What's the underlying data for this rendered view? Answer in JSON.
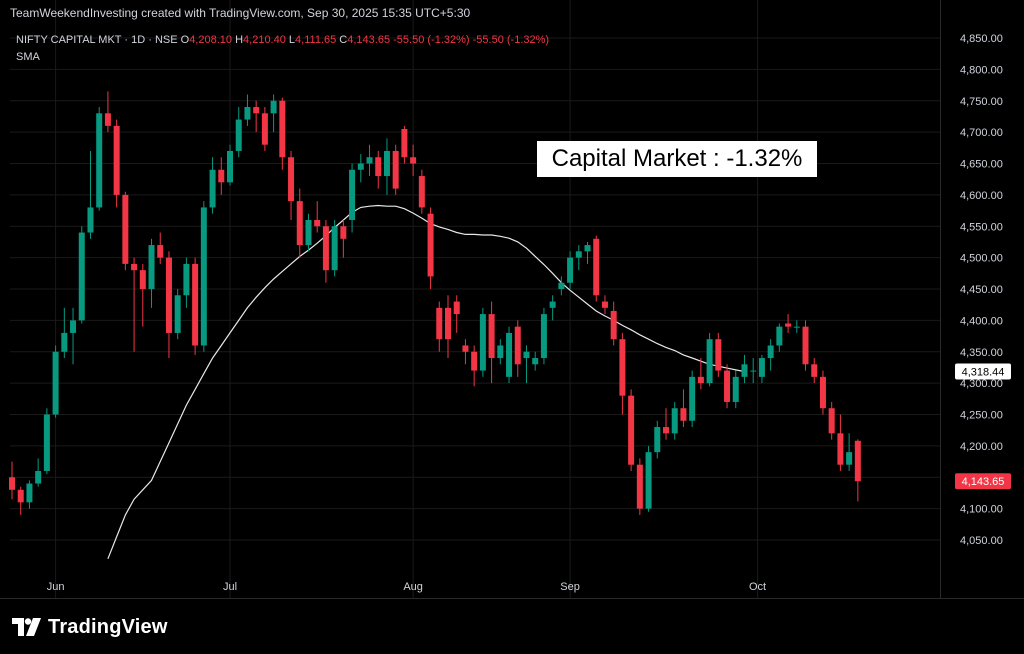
{
  "header": {
    "credit": "TeamWeekendInvesting created with TradingView.com, Sep 30, 2025 15:35 UTC+5:30"
  },
  "legend": {
    "symbol": "NIFTY CAPITAL MKT · 1D · NSE",
    "o_label": "O",
    "o_value": "4,208.10",
    "h_label": "H",
    "h_value": "4,210.40",
    "l_label": "L",
    "l_value": "4,111.65",
    "c_label": "C",
    "c_value": "4,143.65",
    "change1": "-55.50 (-1.32%)",
    "change2": "-55.50 (-1.32%)",
    "indicator": "SMA"
  },
  "annotation": "Capital Market : -1.32%",
  "brand": {
    "name": "TradingView",
    "logo_icon": "tradingview-logo-icon"
  },
  "colors": {
    "up": "#089981",
    "down": "#f23645",
    "sma": "#e8e8e8",
    "grid": "#1a1a1a",
    "text": "#d1d4dc"
  },
  "chart_data": {
    "type": "candlestick",
    "y_range": [
      4010,
      4870
    ],
    "y_ticks": [
      {
        "value": 4850,
        "label": "4,850.00"
      },
      {
        "value": 4800,
        "label": "4,800.00"
      },
      {
        "value": 4750,
        "label": "4,750.00"
      },
      {
        "value": 4700,
        "label": "4,700.00"
      },
      {
        "value": 4650,
        "label": "4,650.00"
      },
      {
        "value": 4600,
        "label": "4,600.00"
      },
      {
        "value": 4550,
        "label": "4,550.00"
      },
      {
        "value": 4500,
        "label": "4,500.00"
      },
      {
        "value": 4450,
        "label": "4,450.00"
      },
      {
        "value": 4400,
        "label": "4,400.00"
      },
      {
        "value": 4350,
        "label": "4,350.00"
      },
      {
        "value": 4300,
        "label": "4,300.00"
      },
      {
        "value": 4250,
        "label": "4,250.00"
      },
      {
        "value": 4200,
        "label": "4,200.00"
      },
      {
        "value": 4150,
        "label": "4,150.00"
      },
      {
        "value": 4100,
        "label": "4,100.00"
      },
      {
        "value": 4050,
        "label": "4,050.00"
      }
    ],
    "x_labels": [
      {
        "label": "Jun",
        "index": 5
      },
      {
        "label": "Jul",
        "index": 25
      },
      {
        "label": "Aug",
        "index": 46
      },
      {
        "label": "Sep",
        "index": 64
      },
      {
        "label": "Oct",
        "index": 85.5
      }
    ],
    "price_labels": [
      {
        "value": 4318.44,
        "label": "4,318.44",
        "style": "sma"
      },
      {
        "value": 4143.65,
        "label": "4,143.65",
        "style": "last"
      }
    ],
    "sma_name": "SMA",
    "sma": [
      [
        11,
        4020
      ],
      [
        12,
        4055
      ],
      [
        13,
        4090
      ],
      [
        14,
        4115
      ],
      [
        15,
        4130
      ],
      [
        16,
        4145
      ],
      [
        17,
        4175
      ],
      [
        18,
        4205
      ],
      [
        19,
        4235
      ],
      [
        20,
        4265
      ],
      [
        21,
        4290
      ],
      [
        22,
        4315
      ],
      [
        23,
        4340
      ],
      [
        24,
        4360
      ],
      [
        25,
        4380
      ],
      [
        26,
        4400
      ],
      [
        27,
        4420
      ],
      [
        28,
        4437
      ],
      [
        29,
        4452
      ],
      [
        30,
        4466
      ],
      [
        31,
        4478
      ],
      [
        32,
        4490
      ],
      [
        33,
        4502
      ],
      [
        34,
        4512
      ],
      [
        35,
        4523
      ],
      [
        36,
        4535
      ],
      [
        37,
        4548
      ],
      [
        38,
        4560
      ],
      [
        39,
        4572
      ],
      [
        40,
        4580
      ],
      [
        41,
        4582
      ],
      [
        42,
        4583
      ],
      [
        43,
        4582
      ],
      [
        44,
        4582
      ],
      [
        45,
        4578
      ],
      [
        46,
        4571
      ],
      [
        47,
        4563
      ],
      [
        48,
        4554
      ],
      [
        49,
        4549
      ],
      [
        50,
        4545
      ],
      [
        51,
        4540
      ],
      [
        52,
        4537
      ],
      [
        53,
        4537
      ],
      [
        54,
        4536
      ],
      [
        55,
        4536
      ],
      [
        56,
        4534
      ],
      [
        57,
        4531
      ],
      [
        58,
        4525
      ],
      [
        59,
        4515
      ],
      [
        60,
        4502
      ],
      [
        61,
        4489
      ],
      [
        62,
        4475
      ],
      [
        63,
        4460
      ],
      [
        64,
        4448
      ],
      [
        65,
        4437
      ],
      [
        66,
        4426
      ],
      [
        67,
        4415
      ],
      [
        68,
        4407
      ],
      [
        69,
        4400
      ],
      [
        70,
        4392
      ],
      [
        71,
        4385
      ],
      [
        72,
        4377
      ],
      [
        73,
        4370
      ],
      [
        74,
        4363
      ],
      [
        75,
        4357
      ],
      [
        76,
        4352
      ],
      [
        77,
        4345
      ],
      [
        78,
        4340
      ],
      [
        79,
        4335
      ],
      [
        80,
        4330
      ],
      [
        81,
        4327
      ],
      [
        82,
        4324
      ],
      [
        83,
        4321
      ],
      [
        84,
        4318.44
      ]
    ],
    "candles": [
      [
        0,
        4150,
        4175,
        4115,
        4130
      ],
      [
        1,
        4130,
        4135,
        4090,
        4110
      ],
      [
        2,
        4110,
        4145,
        4100,
        4140
      ],
      [
        3,
        4140,
        4180,
        4135,
        4160
      ],
      [
        4,
        4160,
        4260,
        4155,
        4250
      ],
      [
        5,
        4250,
        4360,
        4245,
        4350
      ],
      [
        6,
        4350,
        4420,
        4340,
        4380
      ],
      [
        7,
        4380,
        4420,
        4330,
        4400
      ],
      [
        8,
        4400,
        4550,
        4395,
        4540
      ],
      [
        9,
        4540,
        4670,
        4530,
        4580
      ],
      [
        10,
        4580,
        4740,
        4575,
        4730
      ],
      [
        11,
        4730,
        4765,
        4700,
        4710
      ],
      [
        12,
        4710,
        4720,
        4580,
        4600
      ],
      [
        13,
        4600,
        4605,
        4480,
        4490
      ],
      [
        14,
        4490,
        4500,
        4350,
        4480
      ],
      [
        15,
        4480,
        4490,
        4390,
        4450
      ],
      [
        16,
        4450,
        4530,
        4420,
        4520
      ],
      [
        17,
        4520,
        4540,
        4490,
        4500
      ],
      [
        18,
        4500,
        4510,
        4340,
        4380
      ],
      [
        19,
        4380,
        4450,
        4370,
        4440
      ],
      [
        20,
        4440,
        4500,
        4420,
        4490
      ],
      [
        21,
        4490,
        4500,
        4345,
        4360
      ],
      [
        22,
        4360,
        4590,
        4350,
        4580
      ],
      [
        23,
        4580,
        4660,
        4570,
        4640
      ],
      [
        24,
        4640,
        4660,
        4600,
        4620
      ],
      [
        25,
        4620,
        4680,
        4615,
        4670
      ],
      [
        26,
        4670,
        4740,
        4660,
        4720
      ],
      [
        27,
        4720,
        4760,
        4710,
        4740
      ],
      [
        28,
        4740,
        4750,
        4700,
        4730
      ],
      [
        29,
        4730,
        4740,
        4670,
        4680
      ],
      [
        30,
        4730,
        4760,
        4700,
        4750
      ],
      [
        31,
        4750,
        4755,
        4640,
        4660
      ],
      [
        32,
        4660,
        4670,
        4560,
        4590
      ],
      [
        33,
        4590,
        4610,
        4500,
        4520
      ],
      [
        34,
        4520,
        4570,
        4510,
        4560
      ],
      [
        35,
        4560,
        4590,
        4540,
        4550
      ],
      [
        36,
        4550,
        4560,
        4460,
        4480
      ],
      [
        37,
        4480,
        4560,
        4470,
        4550
      ],
      [
        38,
        4550,
        4560,
        4500,
        4530
      ],
      [
        39,
        4560,
        4650,
        4540,
        4640
      ],
      [
        40,
        4640,
        4665,
        4620,
        4650
      ],
      [
        41,
        4650,
        4680,
        4630,
        4660
      ],
      [
        42,
        4660,
        4670,
        4610,
        4630
      ],
      [
        43,
        4630,
        4690,
        4600,
        4670
      ],
      [
        44,
        4670,
        4680,
        4600,
        4610
      ],
      [
        45,
        4705,
        4710,
        4650,
        4660
      ],
      [
        46,
        4660,
        4680,
        4630,
        4650
      ],
      [
        47,
        4630,
        4640,
        4570,
        4580
      ],
      [
        48,
        4570,
        4580,
        4450,
        4470
      ],
      [
        49,
        4420,
        4430,
        4350,
        4370
      ],
      [
        50,
        4420,
        4440,
        4340,
        4370
      ],
      [
        51,
        4430,
        4440,
        4380,
        4410
      ],
      [
        52,
        4360,
        4370,
        4330,
        4350
      ],
      [
        53,
        4350,
        4360,
        4295,
        4320
      ],
      [
        54,
        4320,
        4420,
        4310,
        4410
      ],
      [
        55,
        4410,
        4430,
        4300,
        4340
      ],
      [
        56,
        4340,
        4370,
        4330,
        4360
      ],
      [
        57,
        4310,
        4390,
        4300,
        4380
      ],
      [
        58,
        4390,
        4400,
        4310,
        4330
      ],
      [
        59,
        4340,
        4360,
        4300,
        4350
      ],
      [
        60,
        4330,
        4350,
        4320,
        4340
      ],
      [
        61,
        4340,
        4420,
        4330,
        4410
      ],
      [
        62,
        4420,
        4440,
        4400,
        4430
      ],
      [
        63,
        4450,
        4470,
        4440,
        4460
      ],
      [
        64,
        4460,
        4510,
        4450,
        4500
      ],
      [
        65,
        4500,
        4520,
        4480,
        4510
      ],
      [
        66,
        4510,
        4525,
        4490,
        4520
      ],
      [
        67,
        4530,
        4535,
        4430,
        4440
      ],
      [
        68,
        4430,
        4440,
        4410,
        4420
      ],
      [
        69,
        4415,
        4430,
        4360,
        4370
      ],
      [
        70,
        4370,
        4380,
        4250,
        4280
      ],
      [
        71,
        4280,
        4290,
        4160,
        4170
      ],
      [
        72,
        4170,
        4180,
        4090,
        4100
      ],
      [
        73,
        4100,
        4200,
        4095,
        4190
      ],
      [
        74,
        4190,
        4240,
        4180,
        4230
      ],
      [
        75,
        4230,
        4260,
        4210,
        4220
      ],
      [
        76,
        4220,
        4270,
        4210,
        4260
      ],
      [
        77,
        4260,
        4290,
        4230,
        4240
      ],
      [
        78,
        4240,
        4320,
        4230,
        4310
      ],
      [
        79,
        4310,
        4340,
        4290,
        4300
      ],
      [
        80,
        4300,
        4380,
        4295,
        4370
      ],
      [
        81,
        4370,
        4380,
        4310,
        4320
      ],
      [
        82,
        4320,
        4330,
        4260,
        4270
      ],
      [
        83,
        4270,
        4320,
        4260,
        4310
      ],
      [
        84,
        4310,
        4345,
        4300,
        4330
      ],
      [
        85,
        4320,
        4340,
        4300,
        4320
      ],
      [
        86,
        4310,
        4345,
        4300,
        4340
      ],
      [
        87,
        4340,
        4370,
        4320,
        4360
      ],
      [
        88,
        4360,
        4395,
        4350,
        4390
      ],
      [
        89,
        4395,
        4410,
        4380,
        4390
      ],
      [
        90,
        4390,
        4400,
        4380,
        4390
      ],
      [
        91,
        4390,
        4400,
        4320,
        4330
      ],
      [
        92,
        4330,
        4340,
        4300,
        4310
      ],
      [
        93,
        4310,
        4320,
        4250,
        4260
      ],
      [
        94,
        4260,
        4270,
        4210,
        4220
      ],
      [
        95,
        4220,
        4250,
        4160,
        4170
      ],
      [
        96,
        4170,
        4220,
        4160,
        4190
      ],
      [
        97,
        4208.1,
        4210.4,
        4111.65,
        4143.65
      ]
    ]
  }
}
